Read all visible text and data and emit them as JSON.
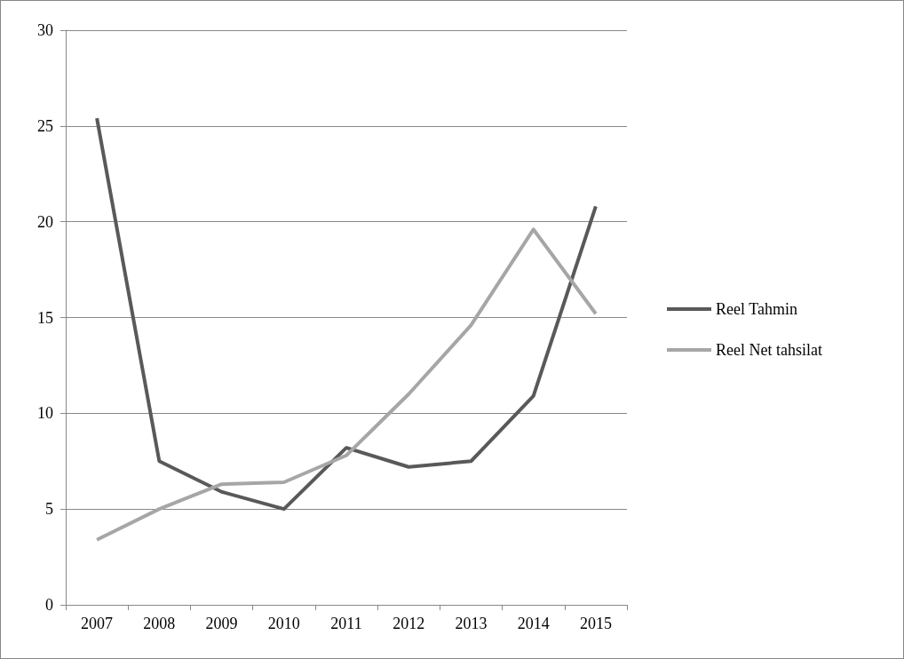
{
  "chart_data": {
    "type": "line",
    "categories": [
      "2007",
      "2008",
      "2009",
      "2010",
      "2011",
      "2012",
      "2013",
      "2014",
      "2015"
    ],
    "series": [
      {
        "name": "Reel Tahmin",
        "color": "#595959",
        "values": [
          25.4,
          7.5,
          5.9,
          5.0,
          8.2,
          7.2,
          7.5,
          10.9,
          20.8
        ]
      },
      {
        "name": "Reel Net tahsilat",
        "color": "#a6a6a6",
        "values": [
          3.4,
          5.0,
          6.3,
          6.4,
          7.8,
          11.0,
          14.6,
          19.6,
          15.2
        ]
      }
    ],
    "ylim": [
      0,
      30
    ],
    "yticks": [
      0,
      5,
      10,
      15,
      20,
      25,
      30
    ],
    "grid": "y",
    "legend": "right",
    "marker": "none",
    "line_style": "solid"
  }
}
